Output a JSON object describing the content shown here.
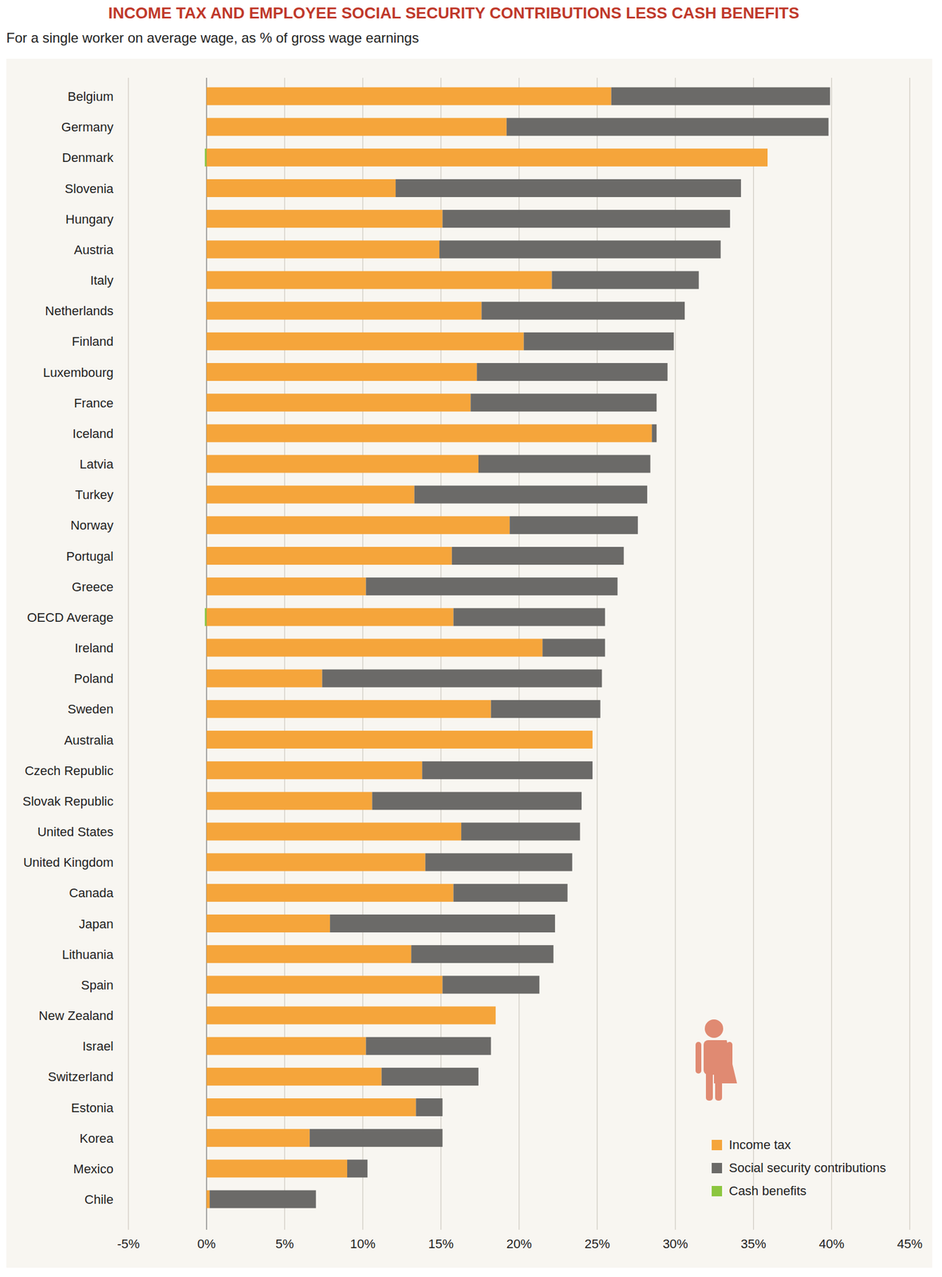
{
  "chart_data": {
    "type": "bar",
    "orientation": "horizontal",
    "stacked": true,
    "grid": true,
    "legend": "lower right",
    "title": "INCOME TAX AND EMPLOYEE SOCIAL SECURITY CONTRIBUTIONS LESS CASH BENEFITS",
    "subtitle": "For a single worker on average wage, as % of gross wage earnings",
    "categories": [
      "Belgium",
      "Germany",
      "Denmark",
      "Slovenia",
      "Hungary",
      "Austria",
      "Italy",
      "Netherlands",
      "Finland",
      "Luxembourg",
      "France",
      "Iceland",
      "Latvia",
      "Turkey",
      "Norway",
      "Portugal",
      "Greece",
      "OECD Average",
      "Ireland",
      "Poland",
      "Sweden",
      "Australia",
      "Czech Republic",
      "Slovak Republic",
      "United States",
      "United Kingdom",
      "Canada",
      "Japan",
      "Lithuania",
      "Spain",
      "New Zealand",
      "Israel",
      "Switzerland",
      "Estonia",
      "Korea",
      "Mexico",
      "Chile"
    ],
    "series": [
      {
        "name": "Income tax",
        "color": "#f5a53b",
        "values": [
          25.9,
          19.2,
          35.9,
          12.1,
          15.1,
          14.9,
          22.1,
          17.6,
          20.3,
          17.3,
          16.9,
          28.5,
          17.4,
          13.3,
          19.4,
          15.7,
          10.2,
          15.8,
          21.5,
          7.4,
          18.2,
          24.7,
          13.8,
          10.6,
          16.3,
          14.0,
          15.8,
          7.9,
          13.1,
          15.1,
          18.5,
          10.2,
          11.2,
          13.4,
          6.6,
          9.0,
          0.2
        ]
      },
      {
        "name": "Social security contributions",
        "color": "#6b6a68",
        "values": [
          14.0,
          20.6,
          0,
          22.1,
          18.4,
          18.0,
          9.4,
          13.0,
          9.6,
          12.2,
          11.9,
          0.3,
          11.0,
          14.9,
          8.2,
          11.0,
          16.1,
          9.7,
          4.0,
          17.9,
          7.0,
          0,
          10.9,
          13.4,
          7.6,
          9.4,
          7.3,
          14.4,
          9.1,
          6.2,
          0,
          8.0,
          6.2,
          1.7,
          8.5,
          1.3,
          6.8
        ]
      },
      {
        "name": "Cash benefits",
        "color": "#8cc63f",
        "values": [
          0,
          0,
          -0.1,
          0,
          0,
          0,
          0,
          0,
          0,
          0,
          0,
          0,
          0,
          0,
          0,
          0,
          0,
          -0.1,
          0,
          0,
          0,
          0,
          0,
          0,
          0,
          0,
          0,
          0,
          0,
          0,
          0,
          0,
          0,
          0,
          0,
          0,
          0
        ]
      }
    ],
    "xlim": [
      -5,
      45
    ],
    "xticks": [
      {
        "value": -5,
        "label": "-5%"
      },
      {
        "value": 0,
        "label": "0%"
      },
      {
        "value": 5,
        "label": "5%"
      },
      {
        "value": 10,
        "label": "10%"
      },
      {
        "value": 15,
        "label": "15%"
      },
      {
        "value": 20,
        "label": "20%"
      },
      {
        "value": 25,
        "label": "25%"
      },
      {
        "value": 30,
        "label": "30%"
      },
      {
        "value": 35,
        "label": "35%"
      },
      {
        "value": 40,
        "label": "40%"
      },
      {
        "value": 45,
        "label": "45%"
      }
    ]
  }
}
